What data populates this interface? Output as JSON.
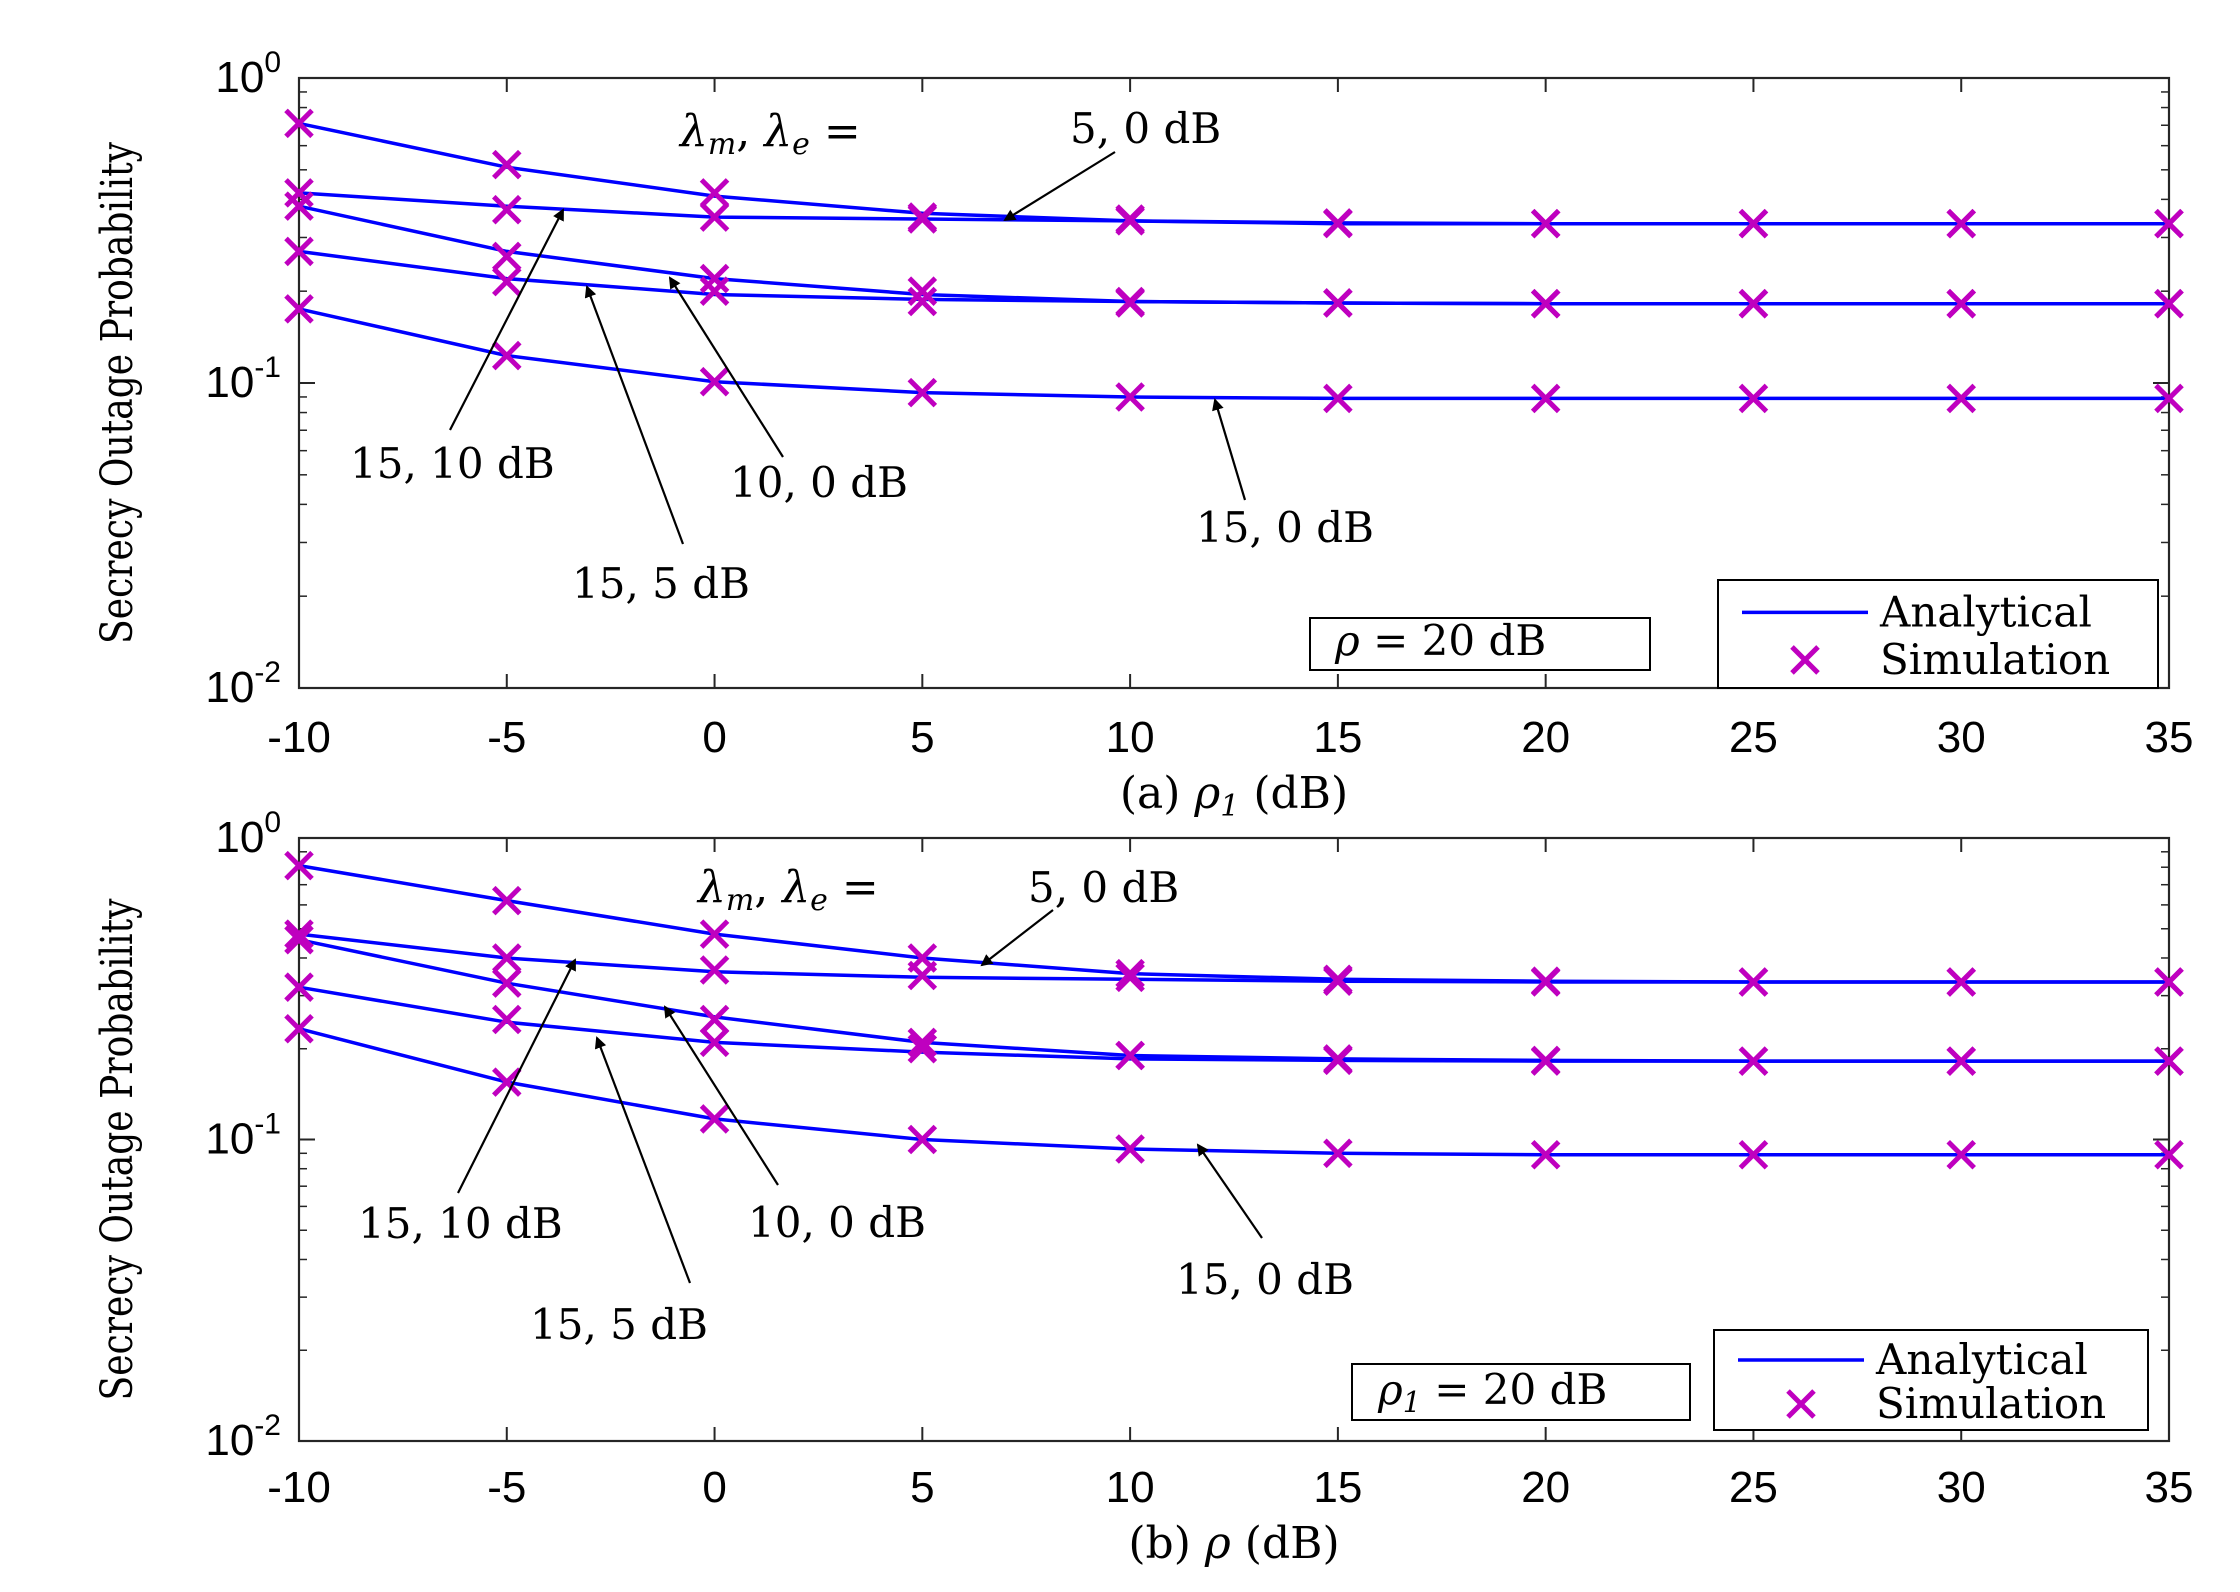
{
  "colors": {
    "analytical": "#0000ff",
    "simulation": "#bf00bf",
    "axis": "#262626",
    "text": "#000000"
  },
  "chart_data": [
    {
      "type": "line",
      "scale": "log-y",
      "panel_label": "(a) ρ₁ (dB)",
      "xlabel": "ρ₁ (dB)",
      "ylabel": "Secrecy Outage Probability",
      "xlim": [
        -10,
        35
      ],
      "ylim": [
        0.01,
        1
      ],
      "xticks": [
        "-10",
        "-5",
        "0",
        "5",
        "10",
        "15",
        "20",
        "25",
        "30",
        "35"
      ],
      "yticks": [
        {
          "base": "10",
          "exp": "0",
          "value": 1
        },
        {
          "base": "10",
          "exp": "-1",
          "value": 0.1
        },
        {
          "base": "10",
          "exp": "-2",
          "value": 0.01
        }
      ],
      "legend": {
        "placement": "bottom-right",
        "entries": [
          "Analytical",
          "Simulation"
        ]
      },
      "param_box": "ρ = 20 dB",
      "header_label": "λm, λe =",
      "x": [
        -10,
        -5,
        0,
        5,
        10,
        15,
        20,
        25,
        30,
        35
      ],
      "series": [
        {
          "name": "5, 0 dB",
          "analytical": [
            0.71,
            0.51,
            0.41,
            0.36,
            0.34,
            0.333,
            0.333,
            0.333,
            0.333,
            0.333
          ],
          "simulation": [
            0.71,
            0.52,
            0.42,
            0.35,
            0.34,
            0.333,
            0.333,
            0.333,
            0.333,
            0.333
          ]
        },
        {
          "name": "15, 10 dB",
          "analytical": [
            0.42,
            0.38,
            0.35,
            0.345,
            0.34,
            0.335,
            0.333,
            0.333,
            0.333,
            0.333
          ],
          "simulation": [
            0.42,
            0.37,
            0.35,
            0.345,
            0.345,
            0.335,
            0.333,
            0.333,
            0.333,
            0.333
          ]
        },
        {
          "name": "10, 0 dB",
          "analytical": [
            0.38,
            0.27,
            0.22,
            0.195,
            0.185,
            0.183,
            0.182,
            0.182,
            0.182,
            0.182
          ],
          "simulation": [
            0.38,
            0.26,
            0.22,
            0.2,
            0.185,
            0.183,
            0.182,
            0.182,
            0.182,
            0.182
          ]
        },
        {
          "name": "15, 5 dB",
          "analytical": [
            0.27,
            0.22,
            0.195,
            0.188,
            0.185,
            0.183,
            0.182,
            0.182,
            0.182,
            0.182
          ],
          "simulation": [
            0.27,
            0.215,
            0.2,
            0.185,
            0.183,
            0.183,
            0.182,
            0.182,
            0.182,
            0.182
          ]
        },
        {
          "name": "15, 0 dB",
          "analytical": [
            0.175,
            0.123,
            0.101,
            0.093,
            0.09,
            0.089,
            0.089,
            0.089,
            0.089,
            0.089
          ],
          "simulation": [
            0.175,
            0.123,
            0.101,
            0.093,
            0.09,
            0.089,
            0.089,
            0.089,
            0.089,
            0.089
          ]
        }
      ],
      "annotations": [
        {
          "text": "5, 0 dB"
        },
        {
          "text": "15, 10 dB"
        },
        {
          "text": "10, 0 dB"
        },
        {
          "text": "15, 5 dB"
        },
        {
          "text": "15, 0 dB"
        }
      ]
    },
    {
      "type": "line",
      "scale": "log-y",
      "panel_label": "(b) ρ (dB)",
      "xlabel": "ρ (dB)",
      "ylabel": "Secrecy Outage Probability",
      "xlim": [
        -10,
        35
      ],
      "ylim": [
        0.01,
        1
      ],
      "xticks": [
        "-10",
        "-5",
        "0",
        "5",
        "10",
        "15",
        "20",
        "25",
        "30",
        "35"
      ],
      "yticks": [
        {
          "base": "10",
          "exp": "0",
          "value": 1
        },
        {
          "base": "10",
          "exp": "-1",
          "value": 0.1
        },
        {
          "base": "10",
          "exp": "-2",
          "value": 0.01
        }
      ],
      "legend": {
        "placement": "bottom-right",
        "entries": [
          "Analytical",
          "Simulation"
        ]
      },
      "param_box": "ρ₁ = 20 dB",
      "header_label": "λm, λe =",
      "x": [
        -10,
        -5,
        0,
        5,
        10,
        15,
        20,
        25,
        30,
        35
      ],
      "series": [
        {
          "name": "5, 0 dB",
          "analytical": [
            0.81,
            0.62,
            0.48,
            0.4,
            0.355,
            0.34,
            0.335,
            0.333,
            0.333,
            0.333
          ],
          "simulation": [
            0.81,
            0.62,
            0.48,
            0.4,
            0.355,
            0.34,
            0.335,
            0.333,
            0.333,
            0.333
          ]
        },
        {
          "name": "15, 10 dB",
          "analytical": [
            0.48,
            0.4,
            0.36,
            0.345,
            0.34,
            0.335,
            0.333,
            0.333,
            0.333,
            0.333
          ],
          "simulation": [
            0.48,
            0.4,
            0.365,
            0.35,
            0.345,
            0.335,
            0.333,
            0.333,
            0.333,
            0.333
          ]
        },
        {
          "name": "10, 0 dB",
          "analytical": [
            0.46,
            0.33,
            0.255,
            0.21,
            0.19,
            0.185,
            0.183,
            0.182,
            0.182,
            0.182
          ],
          "simulation": [
            0.46,
            0.33,
            0.25,
            0.21,
            0.19,
            0.185,
            0.183,
            0.182,
            0.182,
            0.182
          ]
        },
        {
          "name": "15, 5 dB",
          "analytical": [
            0.32,
            0.245,
            0.21,
            0.195,
            0.185,
            0.183,
            0.182,
            0.182,
            0.182,
            0.182
          ],
          "simulation": [
            0.32,
            0.25,
            0.21,
            0.2,
            0.19,
            0.183,
            0.182,
            0.182,
            0.182,
            0.182
          ]
        },
        {
          "name": "15, 0 dB",
          "analytical": [
            0.233,
            0.155,
            0.117,
            0.1,
            0.093,
            0.09,
            0.089,
            0.089,
            0.089,
            0.089
          ],
          "simulation": [
            0.233,
            0.155,
            0.117,
            0.1,
            0.093,
            0.09,
            0.089,
            0.089,
            0.089,
            0.089
          ]
        }
      ],
      "annotations": [
        {
          "text": "5, 0 dB"
        },
        {
          "text": "15, 10 dB"
        },
        {
          "text": "10, 0 dB"
        },
        {
          "text": "15, 5 dB"
        },
        {
          "text": "15, 0 dB"
        }
      ]
    }
  ]
}
